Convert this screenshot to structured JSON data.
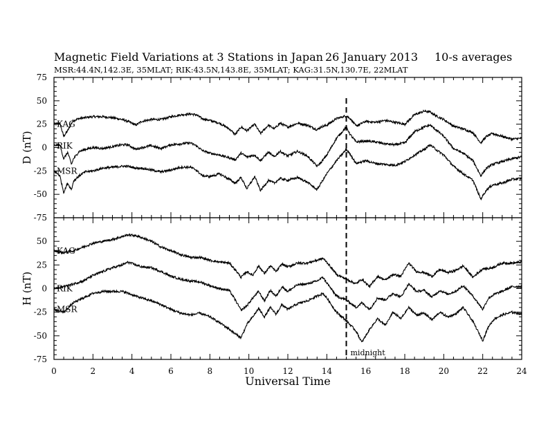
{
  "header": {
    "title_left": "Magnetic Field Variations at 3 Stations in Japan",
    "title_date": "26 January 2013",
    "title_right": "10-s averages",
    "subtitle": "MSR:44.4N,142.3E, 35MLAT;  RIK:43.5N,143.8E, 35MLAT;  KAG:31.5N,130.7E, 22MLAT"
  },
  "chart_data": [
    {
      "type": "line",
      "ylabel": "D (nT)",
      "xlim": [
        0,
        24
      ],
      "ylim": [
        -75,
        75
      ],
      "yticks": [
        -75,
        -50,
        -25,
        0,
        25,
        50,
        75
      ],
      "series": [
        {
          "name": "KAG",
          "x": [
            0,
            0.3,
            0.5,
            0.7,
            0.9,
            1.0,
            1.3,
            1.6,
            2.0,
            2.5,
            3.0,
            3.5,
            3.8,
            4.2,
            4.5,
            5.0,
            5.5,
            6.0,
            6.5,
            7.0,
            7.3,
            7.6,
            8.0,
            8.5,
            9.0,
            9.3,
            9.6,
            9.9,
            10.3,
            10.6,
            11.0,
            11.3,
            11.6,
            12.0,
            12.5,
            13.0,
            13.5,
            13.7,
            14.0,
            14.5,
            15.0,
            15.2,
            15.5,
            16.0,
            16.5,
            17.0,
            17.5,
            18.0,
            18.5,
            19.0,
            19.3,
            19.6,
            20.0,
            20.5,
            21.0,
            21.5,
            21.9,
            22.2,
            22.5,
            23.0,
            23.5,
            24.0
          ],
          "values": [
            25,
            26,
            12,
            18,
            26,
            29,
            31,
            32,
            33,
            33,
            32,
            30,
            28,
            24,
            28,
            30,
            30,
            33,
            35,
            36,
            35,
            31,
            29,
            26,
            20,
            14,
            22,
            18,
            25,
            15,
            24,
            20,
            26,
            22,
            26,
            24,
            19,
            22,
            24,
            31,
            34,
            31,
            23,
            28,
            27,
            29,
            27,
            25,
            35,
            39,
            38,
            34,
            30,
            23,
            20,
            16,
            5,
            12,
            15,
            12,
            9,
            10
          ]
        },
        {
          "name": "RIK",
          "x": [
            0,
            0.3,
            0.5,
            0.7,
            0.9,
            1.0,
            1.3,
            1.6,
            2.0,
            2.5,
            3.0,
            3.5,
            3.8,
            4.2,
            4.5,
            5.0,
            5.5,
            6.0,
            6.5,
            7.0,
            7.3,
            7.6,
            8.0,
            8.5,
            9.0,
            9.3,
            9.6,
            9.9,
            10.3,
            10.6,
            11.0,
            11.3,
            11.6,
            12.0,
            12.5,
            13.0,
            13.5,
            13.7,
            14.0,
            14.5,
            15.0,
            15.2,
            15.5,
            16.0,
            16.5,
            17.0,
            17.5,
            18.0,
            18.5,
            19.0,
            19.3,
            19.6,
            20.0,
            20.5,
            21.0,
            21.5,
            21.9,
            22.2,
            22.5,
            23.0,
            23.5,
            24.0
          ],
          "values": [
            2,
            3,
            -12,
            -5,
            -18,
            -12,
            -4,
            -2,
            0,
            -1,
            1,
            3,
            3,
            -2,
            0,
            2,
            -1,
            3,
            4,
            5,
            2,
            -3,
            -6,
            -8,
            -11,
            -13,
            -6,
            -10,
            -8,
            -14,
            -5,
            -10,
            -4,
            -9,
            -4,
            -9,
            -20,
            -16,
            -8,
            10,
            22,
            14,
            6,
            7,
            6,
            4,
            3,
            5,
            17,
            22,
            24,
            19,
            12,
            -1,
            -6,
            -14,
            -30,
            -22,
            -18,
            -15,
            -12,
            -10
          ]
        },
        {
          "name": "MSR",
          "x": [
            0,
            0.3,
            0.5,
            0.7,
            0.9,
            1.0,
            1.3,
            1.6,
            2.0,
            2.5,
            3.0,
            3.5,
            3.8,
            4.2,
            4.5,
            5.0,
            5.5,
            6.0,
            6.5,
            7.0,
            7.3,
            7.6,
            8.0,
            8.5,
            9.0,
            9.3,
            9.6,
            9.9,
            10.3,
            10.6,
            11.0,
            11.3,
            11.6,
            12.0,
            12.5,
            13.0,
            13.5,
            13.7,
            14.0,
            14.5,
            15.0,
            15.2,
            15.5,
            16.0,
            16.5,
            17.0,
            17.5,
            18.0,
            18.5,
            19.0,
            19.3,
            19.6,
            20.0,
            20.5,
            21.0,
            21.5,
            21.9,
            22.2,
            22.5,
            23.0,
            23.5,
            24.0
          ],
          "values": [
            -25,
            -30,
            -48,
            -38,
            -45,
            -36,
            -30,
            -26,
            -25,
            -22,
            -21,
            -20,
            -20,
            -22,
            -22,
            -24,
            -26,
            -24,
            -21,
            -21,
            -24,
            -30,
            -31,
            -28,
            -34,
            -38,
            -32,
            -44,
            -31,
            -46,
            -35,
            -38,
            -33,
            -35,
            -32,
            -37,
            -45,
            -38,
            -28,
            -14,
            -2,
            -7,
            -17,
            -14,
            -17,
            -18,
            -19,
            -15,
            -8,
            -2,
            3,
            -2,
            -8,
            -20,
            -28,
            -35,
            -55,
            -45,
            -40,
            -38,
            -34,
            -33
          ]
        }
      ]
    },
    {
      "type": "line",
      "ylabel": "H (nT)",
      "xlabel": "Universal Time",
      "xlim": [
        0,
        24
      ],
      "ylim": [
        -75,
        75
      ],
      "xticks": [
        0,
        2,
        4,
        6,
        8,
        10,
        12,
        14,
        16,
        18,
        20,
        22,
        24
      ],
      "yticks": [
        -75,
        -50,
        -25,
        0,
        25,
        50
      ],
      "series": [
        {
          "name": "KAG",
          "x": [
            0,
            0.5,
            1.0,
            1.5,
            2.0,
            2.5,
            3.0,
            3.5,
            3.8,
            4.2,
            4.5,
            5.0,
            5.5,
            6.0,
            6.5,
            7.0,
            7.5,
            8.0,
            8.5,
            9.0,
            9.3,
            9.6,
            9.9,
            10.2,
            10.5,
            10.8,
            11.1,
            11.4,
            11.7,
            12.0,
            12.5,
            13.0,
            13.5,
            13.8,
            14.0,
            14.5,
            15.0,
            15.5,
            15.8,
            16.2,
            16.6,
            17.0,
            17.4,
            17.8,
            18.2,
            18.6,
            19.0,
            19.4,
            19.8,
            20.2,
            20.6,
            21.0,
            21.5,
            22.0,
            22.3,
            22.6,
            23.0,
            23.5,
            24.0
          ],
          "values": [
            40,
            38,
            40,
            44,
            48,
            50,
            52,
            55,
            57,
            56,
            54,
            50,
            44,
            40,
            36,
            33,
            33,
            30,
            28,
            27,
            20,
            12,
            18,
            14,
            24,
            16,
            24,
            18,
            26,
            23,
            27,
            27,
            30,
            32,
            28,
            15,
            10,
            5,
            10,
            2,
            13,
            9,
            15,
            13,
            27,
            18,
            17,
            13,
            20,
            17,
            19,
            24,
            12,
            21,
            21,
            23,
            27,
            27,
            28
          ]
        },
        {
          "name": "RIK",
          "x": [
            0,
            0.5,
            1.0,
            1.5,
            2.0,
            2.5,
            3.0,
            3.5,
            3.8,
            4.2,
            4.5,
            5.0,
            5.5,
            6.0,
            6.5,
            7.0,
            7.5,
            8.0,
            8.5,
            9.0,
            9.3,
            9.6,
            9.9,
            10.2,
            10.5,
            10.8,
            11.1,
            11.4,
            11.7,
            12.0,
            12.5,
            13.0,
            13.5,
            13.8,
            14.0,
            14.5,
            15.0,
            15.5,
            15.8,
            16.2,
            16.6,
            17.0,
            17.4,
            17.8,
            18.2,
            18.6,
            19.0,
            19.4,
            19.8,
            20.2,
            20.6,
            21.0,
            21.5,
            22.0,
            22.3,
            22.6,
            23.0,
            23.5,
            24.0
          ],
          "values": [
            0,
            2,
            5,
            8,
            14,
            18,
            22,
            25,
            28,
            25,
            23,
            22,
            18,
            13,
            10,
            8,
            7,
            3,
            0,
            -2,
            -12,
            -23,
            -18,
            -10,
            -3,
            -13,
            -2,
            -8,
            2,
            -3,
            4,
            5,
            8,
            12,
            6,
            -8,
            -12,
            -20,
            -15,
            -22,
            -10,
            -12,
            -5,
            -9,
            5,
            -3,
            -2,
            -9,
            -2,
            -6,
            -3,
            3,
            -8,
            -22,
            -10,
            -6,
            -3,
            2,
            2
          ]
        },
        {
          "name": "MSR",
          "x": [
            0,
            0.5,
            1.0,
            1.5,
            2.0,
            2.5,
            3.0,
            3.5,
            3.8,
            4.2,
            4.5,
            5.0,
            5.5,
            6.0,
            6.5,
            7.0,
            7.5,
            8.0,
            8.5,
            9.0,
            9.3,
            9.6,
            9.9,
            10.2,
            10.5,
            10.8,
            11.1,
            11.4,
            11.7,
            12.0,
            12.5,
            13.0,
            13.5,
            13.8,
            14.0,
            14.5,
            15.0,
            15.5,
            15.8,
            16.2,
            16.6,
            17.0,
            17.4,
            17.8,
            18.2,
            18.6,
            19.0,
            19.4,
            19.8,
            20.2,
            20.6,
            21.0,
            21.5,
            22.0,
            22.3,
            22.6,
            23.0,
            23.5,
            24.0
          ],
          "values": [
            -22,
            -25,
            -15,
            -10,
            -5,
            -3,
            -3,
            -3,
            -5,
            -8,
            -10,
            -13,
            -17,
            -22,
            -26,
            -28,
            -26,
            -30,
            -36,
            -43,
            -48,
            -52,
            -38,
            -30,
            -21,
            -30,
            -20,
            -27,
            -17,
            -22,
            -16,
            -13,
            -8,
            -5,
            -10,
            -25,
            -34,
            -45,
            -57,
            -43,
            -32,
            -39,
            -25,
            -32,
            -20,
            -28,
            -26,
            -33,
            -25,
            -30,
            -27,
            -20,
            -35,
            -55,
            -40,
            -32,
            -28,
            -25,
            -27
          ]
        }
      ]
    }
  ],
  "annotations": {
    "midnight_label": "midnight",
    "midnight_x": 15
  }
}
